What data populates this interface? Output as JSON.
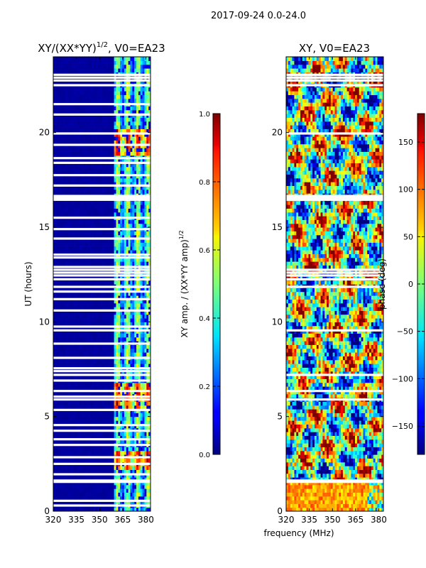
{
  "figure": {
    "suptitle": "2017-09-24 0.0-24.0",
    "shared_xlabel": "frequency (MHz)"
  },
  "chart_data": [
    {
      "type": "heatmap",
      "title_text": "XY/(XX*YY)",
      "title_exponent": "1/2",
      "title_suffix": ", V0=EA23",
      "xlabel": "",
      "ylabel": "UT (hours)",
      "xlim": [
        320,
        383
      ],
      "ylim": [
        0,
        24
      ],
      "xticks": [
        320,
        335,
        350,
        365,
        380
      ],
      "yticks": [
        0,
        5,
        10,
        15,
        20
      ],
      "colormap": "jet",
      "colorbar": {
        "label_text": "XY amp. / (XX*YY amp)",
        "label_exponent": "1/2",
        "range": [
          0.0,
          1.0
        ],
        "ticks": [
          "0.0",
          "0.2",
          "0.4",
          "0.6",
          "0.8",
          "1.0"
        ],
        "tick_values": [
          0.0,
          0.2,
          0.4,
          0.6,
          0.8,
          1.0
        ]
      },
      "background_value": 0.02,
      "signal_band_mhz": [
        360,
        383
      ],
      "flagged_hours": [
        0.3,
        0.55,
        1.55,
        1.62,
        1.95,
        2.5,
        2.85,
        3.5,
        3.8,
        4.25,
        4.55,
        5.35,
        5.9,
        6.05,
        6.35,
        6.9,
        7.2,
        7.4,
        7.55,
        8.1,
        8.85,
        9.55,
        9.75,
        10.6,
        11.2,
        11.6,
        11.85,
        12.25,
        12.45,
        12.6,
        12.75,
        12.9,
        13.4,
        13.55,
        14.4,
        14.9,
        15.5,
        16.45,
        16.55,
        16.65,
        17.2,
        17.75,
        18.4,
        18.65,
        19.35,
        19.95,
        20.95,
        21.5,
        22.5,
        22.75,
        22.9,
        23.05
      ]
    },
    {
      "type": "heatmap",
      "title_text": "XY, V0=EA23",
      "xlabel": "frequency (MHz)",
      "ylabel": "",
      "xlim": [
        320,
        383
      ],
      "ylim": [
        0,
        24
      ],
      "xticks": [
        320,
        335,
        350,
        365,
        380
      ],
      "yticks": [
        0,
        5,
        10,
        15,
        20
      ],
      "colormap": "jet",
      "colorbar": {
        "label": "phase (deg)",
        "range": [
          -180,
          180
        ],
        "ticks": [
          "−150",
          "−100",
          "−50",
          "0",
          "50",
          "100",
          "150"
        ],
        "tick_values": [
          -150,
          -100,
          -50,
          0,
          50,
          100,
          150
        ]
      },
      "flagged_hours": [
        1.55,
        1.62,
        5.9,
        6.35,
        7.2,
        9.55,
        11.85,
        12.25,
        12.45,
        12.6,
        12.75,
        16.45,
        16.55,
        16.65,
        19.95,
        22.5,
        22.75,
        22.9,
        23.05
      ]
    }
  ]
}
